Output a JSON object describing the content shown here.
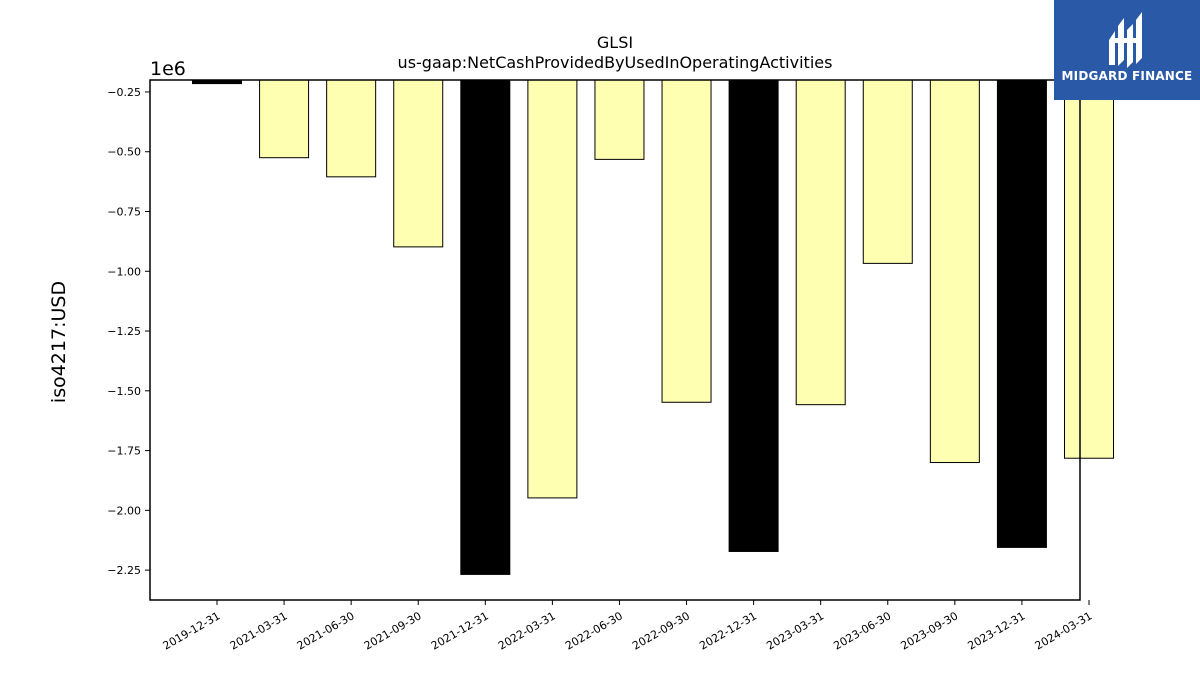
{
  "chart_data": {
    "type": "bar",
    "title": "GLSI",
    "subtitle": "us-gaap:NetCashProvidedByUsedInOperatingActivities",
    "ylabel": "iso4217:USD",
    "xlabel": "",
    "offset_label": "1e6",
    "scale": 1000000,
    "categories": [
      "2019-12-31",
      "2021-03-31",
      "2021-06-30",
      "2021-09-30",
      "2021-12-31",
      "2022-03-31",
      "2022-06-30",
      "2022-09-30",
      "2022-12-31",
      "2023-03-31",
      "2023-06-30",
      "2023-09-30",
      "2023-12-31",
      "2024-03-31"
    ],
    "values": [
      -215000,
      -525000,
      -605000,
      -898000,
      -2268000,
      -1948000,
      -532000,
      -1548000,
      -2172000,
      -1558000,
      -967000,
      -1800000,
      -2155000,
      -1782000
    ],
    "colors": [
      "#000000",
      "#ffffb2",
      "#ffffb2",
      "#ffffb2",
      "#000000",
      "#ffffb2",
      "#ffffb2",
      "#ffffb2",
      "#000000",
      "#ffffb2",
      "#ffffb2",
      "#ffffb2",
      "#000000",
      "#ffffb2"
    ],
    "ylim": [
      -2375000,
      -200000
    ],
    "yticks": [
      -250000,
      -500000,
      -750000,
      -1000000,
      -1250000,
      -1500000,
      -1750000,
      -2000000,
      -2250000
    ],
    "ytick_labels": [
      "−0.25",
      "−0.50",
      "−0.75",
      "−1.00",
      "−1.25",
      "−1.50",
      "−1.75",
      "−2.00",
      "−2.25"
    ],
    "grid": false,
    "legend": "none"
  },
  "logo": {
    "text": "MIDGARD FINANCE",
    "color": "#2a59a8"
  }
}
